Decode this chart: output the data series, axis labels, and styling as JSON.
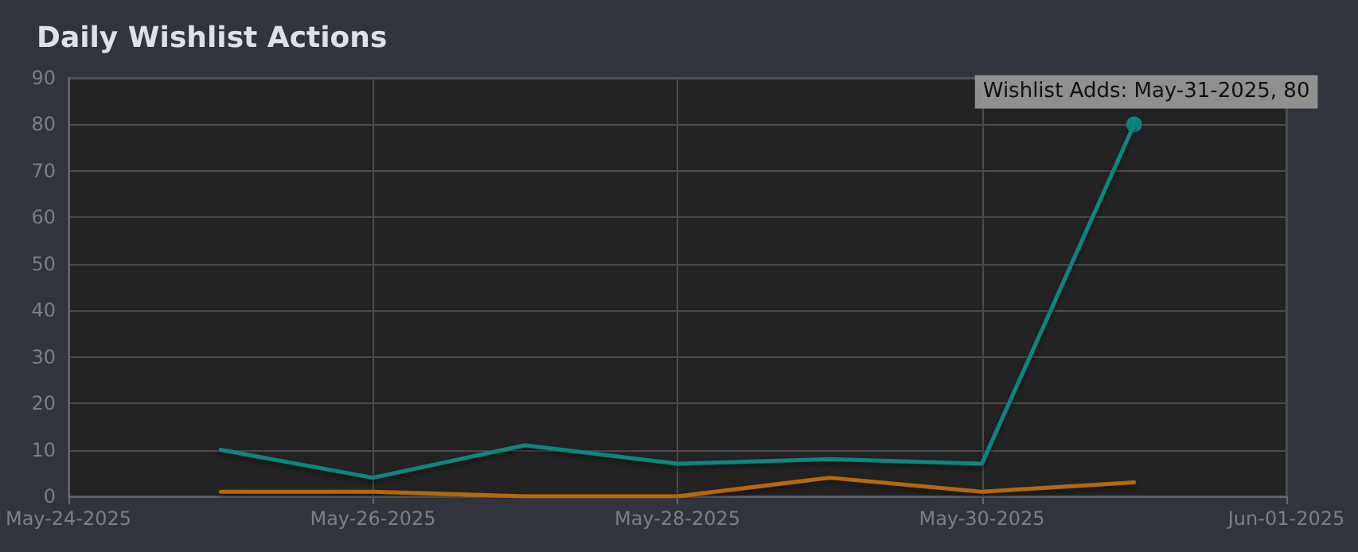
{
  "chart_data": {
    "type": "line",
    "title": "Daily Wishlist Actions",
    "x": [
      "2025-05-25",
      "2025-05-26",
      "2025-05-27",
      "2025-05-28",
      "2025-05-29",
      "2025-05-30",
      "2025-05-31"
    ],
    "series": [
      {
        "color": "#0a8582",
        "values": [
          10,
          4,
          11,
          7,
          8,
          7,
          80
        ]
      },
      {
        "color": "#b5690c",
        "values": [
          1,
          1,
          0,
          0,
          4,
          1,
          3
        ]
      },
      {
        "color": "#86876a",
        "values": [
          0,
          0,
          0,
          0,
          0,
          0,
          0
        ]
      }
    ],
    "xlim": [
      "2025-05-24",
      "2025-06-01"
    ],
    "xticks": [
      {
        "value": "2025-05-24",
        "label": "May-24-2025"
      },
      {
        "value": "2025-05-26",
        "label": "May-26-2025"
      },
      {
        "value": "2025-05-28",
        "label": "May-28-2025"
      },
      {
        "value": "2025-05-30",
        "label": "May-30-2025"
      },
      {
        "value": "2025-06-01",
        "label": "Jun-01-2025"
      }
    ],
    "ylim": [
      0,
      90
    ],
    "yticks": [
      0,
      10,
      20,
      30,
      40,
      50,
      60,
      70,
      80,
      90
    ],
    "annotations": [
      {
        "text": "Wishlist Adds: May-31-2025, 80",
        "x": "2025-05-31",
        "y": 80
      }
    ],
    "grid": true,
    "marker": "none",
    "line_style": "solid"
  }
}
